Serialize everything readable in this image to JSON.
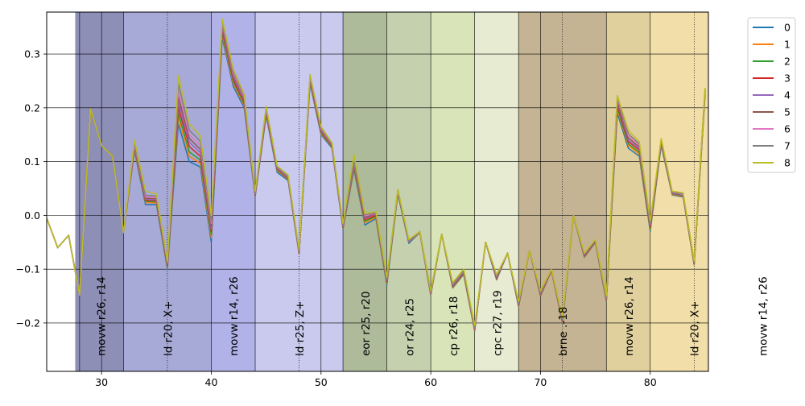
{
  "chart_data": {
    "type": "line",
    "title": "",
    "xlabel": "",
    "ylabel": "",
    "xlim": [
      25,
      85.3
    ],
    "ylim": [
      -0.29,
      0.378
    ],
    "grid": true,
    "legend_position": "outside-top-right",
    "x_ticks": [
      {
        "value": 30,
        "label": "30"
      },
      {
        "value": 40,
        "label": "40"
      },
      {
        "value": 50,
        "label": "50"
      },
      {
        "value": 60,
        "label": "60"
      },
      {
        "value": 70,
        "label": "70"
      },
      {
        "value": 80,
        "label": "80"
      }
    ],
    "y_ticks": [
      {
        "value": 0.3,
        "label": "0.3"
      },
      {
        "value": 0.2,
        "label": "0.2"
      },
      {
        "value": 0.1,
        "label": "0.1"
      },
      {
        "value": 0.0,
        "label": "0.0"
      },
      {
        "value": -0.1,
        "label": "−0.1"
      },
      {
        "value": -0.2,
        "label": "−0.2"
      }
    ],
    "x": [
      25,
      26,
      27,
      28,
      29,
      30,
      31,
      32,
      33,
      34,
      35,
      36,
      37,
      38,
      39,
      40,
      41,
      42,
      43,
      44,
      45,
      46,
      47,
      48,
      49,
      50,
      51,
      52,
      53,
      54,
      55,
      56,
      57,
      58,
      59,
      60,
      61,
      62,
      63,
      64,
      65,
      66,
      67,
      68,
      69,
      70,
      71,
      72,
      73,
      74,
      75,
      76,
      77,
      78,
      79,
      80,
      81,
      82,
      83,
      84,
      85
    ],
    "series": [
      {
        "name": "0",
        "color": "#1f77b4",
        "values": [
          -0.005,
          -0.06,
          -0.037,
          -0.148,
          0.198,
          0.13,
          0.11,
          -0.032,
          0.12,
          0.02,
          0.02,
          -0.1,
          0.17,
          0.1,
          0.09,
          -0.05,
          0.33,
          0.24,
          0.2,
          0.035,
          0.185,
          0.08,
          0.065,
          -0.072,
          0.245,
          0.15,
          0.125,
          -0.025,
          0.085,
          -0.018,
          -0.006,
          -0.13,
          0.04,
          -0.052,
          -0.032,
          -0.148,
          -0.035,
          -0.135,
          -0.11,
          -0.215,
          -0.05,
          -0.12,
          -0.07,
          -0.17,
          -0.065,
          -0.15,
          -0.103,
          -0.2,
          0.0,
          -0.078,
          -0.05,
          -0.16,
          0.19,
          0.125,
          0.11,
          -0.03,
          0.13,
          0.038,
          0.034,
          -0.092,
          0.225
        ]
      },
      {
        "name": "1",
        "color": "#ff7f0e",
        "values": [
          -0.005,
          -0.06,
          -0.037,
          -0.148,
          0.198,
          0.13,
          0.11,
          -0.032,
          0.122,
          0.024,
          0.023,
          -0.097,
          0.182,
          0.11,
          0.097,
          -0.042,
          0.336,
          0.245,
          0.204,
          0.036,
          0.188,
          0.083,
          0.067,
          -0.071,
          0.248,
          0.152,
          0.127,
          -0.024,
          0.088,
          -0.014,
          -0.004,
          -0.127,
          0.042,
          -0.05,
          -0.032,
          -0.147,
          -0.035,
          -0.134,
          -0.109,
          -0.214,
          -0.05,
          -0.119,
          -0.07,
          -0.169,
          -0.065,
          -0.149,
          -0.103,
          -0.199,
          0.0,
          -0.077,
          -0.049,
          -0.159,
          0.196,
          0.13,
          0.114,
          -0.027,
          0.133,
          0.039,
          0.035,
          -0.091,
          0.228
        ]
      },
      {
        "name": "2",
        "color": "#2ca02c",
        "values": [
          -0.005,
          -0.06,
          -0.037,
          -0.148,
          0.198,
          0.13,
          0.11,
          -0.032,
          0.124,
          0.026,
          0.025,
          -0.095,
          0.19,
          0.118,
          0.103,
          -0.036,
          0.34,
          0.249,
          0.207,
          0.037,
          0.19,
          0.085,
          0.068,
          -0.07,
          0.25,
          0.154,
          0.128,
          -0.023,
          0.09,
          -0.011,
          -0.002,
          -0.125,
          0.043,
          -0.05,
          -0.031,
          -0.146,
          -0.035,
          -0.133,
          -0.108,
          -0.213,
          -0.05,
          -0.118,
          -0.07,
          -0.168,
          -0.065,
          -0.148,
          -0.102,
          -0.198,
          0.0,
          -0.076,
          -0.048,
          -0.158,
          0.2,
          0.133,
          0.117,
          -0.025,
          0.135,
          0.04,
          0.036,
          -0.09,
          0.23
        ]
      },
      {
        "name": "3",
        "color": "#d62728",
        "values": [
          -0.005,
          -0.06,
          -0.037,
          -0.148,
          0.198,
          0.13,
          0.11,
          -0.032,
          0.126,
          0.028,
          0.027,
          -0.093,
          0.2,
          0.128,
          0.11,
          -0.03,
          0.345,
          0.253,
          0.21,
          0.038,
          0.192,
          0.086,
          0.069,
          -0.069,
          0.252,
          0.156,
          0.129,
          -0.022,
          0.092,
          -0.008,
          0.0,
          -0.123,
          0.044,
          -0.049,
          -0.031,
          -0.145,
          -0.035,
          -0.132,
          -0.107,
          -0.212,
          -0.05,
          -0.117,
          -0.07,
          -0.167,
          -0.065,
          -0.147,
          -0.102,
          -0.197,
          0.0,
          -0.075,
          -0.048,
          -0.157,
          0.205,
          0.137,
          0.121,
          -0.022,
          0.137,
          0.041,
          0.037,
          -0.089,
          0.232
        ]
      },
      {
        "name": "4",
        "color": "#9467bd",
        "values": [
          -0.005,
          -0.06,
          -0.037,
          -0.148,
          0.198,
          0.13,
          0.11,
          -0.032,
          0.128,
          0.03,
          0.029,
          -0.091,
          0.21,
          0.136,
          0.117,
          -0.025,
          0.349,
          0.257,
          0.213,
          0.039,
          0.194,
          0.087,
          0.07,
          -0.068,
          0.254,
          0.158,
          0.13,
          -0.021,
          0.094,
          -0.005,
          0.002,
          -0.121,
          0.045,
          -0.049,
          -0.031,
          -0.144,
          -0.035,
          -0.131,
          -0.106,
          -0.211,
          -0.05,
          -0.116,
          -0.07,
          -0.166,
          -0.065,
          -0.146,
          -0.101,
          -0.196,
          0.0,
          -0.074,
          -0.047,
          -0.156,
          0.21,
          0.14,
          0.124,
          -0.02,
          0.138,
          0.041,
          0.037,
          -0.088,
          0.233
        ]
      },
      {
        "name": "5",
        "color": "#8c564b",
        "values": [
          -0.005,
          -0.06,
          -0.037,
          -0.148,
          0.198,
          0.13,
          0.11,
          -0.032,
          0.13,
          0.032,
          0.031,
          -0.09,
          0.22,
          0.143,
          0.123,
          -0.02,
          0.353,
          0.261,
          0.216,
          0.04,
          0.196,
          0.088,
          0.071,
          -0.067,
          0.256,
          0.16,
          0.131,
          -0.02,
          0.096,
          -0.003,
          0.003,
          -0.12,
          0.046,
          -0.048,
          -0.03,
          -0.143,
          -0.035,
          -0.13,
          -0.105,
          -0.21,
          -0.05,
          -0.115,
          -0.07,
          -0.165,
          -0.065,
          -0.145,
          -0.101,
          -0.195,
          0.0,
          -0.073,
          -0.047,
          -0.155,
          0.214,
          0.144,
          0.127,
          -0.018,
          0.139,
          0.042,
          0.038,
          -0.087,
          0.234
        ]
      },
      {
        "name": "6",
        "color": "#e377c2",
        "values": [
          -0.005,
          -0.06,
          -0.037,
          -0.148,
          0.198,
          0.13,
          0.11,
          -0.032,
          0.132,
          0.034,
          0.033,
          -0.089,
          0.232,
          0.15,
          0.13,
          -0.015,
          0.357,
          0.264,
          0.219,
          0.041,
          0.198,
          0.089,
          0.072,
          -0.066,
          0.258,
          0.161,
          0.132,
          -0.019,
          0.098,
          -0.001,
          0.004,
          -0.119,
          0.047,
          -0.048,
          -0.03,
          -0.142,
          -0.035,
          -0.129,
          -0.104,
          -0.209,
          -0.05,
          -0.114,
          -0.07,
          -0.164,
          -0.065,
          -0.144,
          -0.1,
          -0.194,
          0.0,
          -0.072,
          -0.046,
          -0.154,
          0.218,
          0.148,
          0.13,
          -0.016,
          0.14,
          0.043,
          0.039,
          -0.086,
          0.235
        ]
      },
      {
        "name": "7",
        "color": "#7f7f7f",
        "values": [
          -0.005,
          -0.06,
          -0.037,
          -0.148,
          0.198,
          0.13,
          0.11,
          -0.032,
          0.135,
          0.037,
          0.036,
          -0.088,
          0.245,
          0.158,
          0.138,
          -0.01,
          0.361,
          0.268,
          0.222,
          0.042,
          0.2,
          0.09,
          0.073,
          -0.065,
          0.26,
          0.163,
          0.133,
          -0.018,
          0.1,
          0.001,
          0.005,
          -0.118,
          0.048,
          -0.047,
          -0.03,
          -0.141,
          -0.035,
          -0.128,
          -0.103,
          -0.208,
          -0.05,
          -0.113,
          -0.07,
          -0.163,
          -0.065,
          -0.143,
          -0.1,
          -0.193,
          0.0,
          -0.071,
          -0.046,
          -0.153,
          0.221,
          0.152,
          0.133,
          -0.014,
          0.141,
          0.044,
          0.04,
          -0.085,
          0.236
        ]
      },
      {
        "name": "8",
        "color": "#bcbd22",
        "values": [
          -0.005,
          -0.06,
          -0.037,
          -0.148,
          0.198,
          0.13,
          0.11,
          -0.032,
          0.14,
          0.045,
          0.04,
          -0.085,
          0.26,
          0.17,
          0.148,
          0.0,
          0.365,
          0.272,
          0.225,
          0.045,
          0.203,
          0.092,
          0.075,
          -0.063,
          0.262,
          0.165,
          0.135,
          -0.015,
          0.113,
          0.003,
          0.007,
          -0.115,
          0.048,
          -0.045,
          -0.03,
          -0.14,
          -0.035,
          -0.125,
          -0.1,
          -0.205,
          -0.05,
          -0.11,
          -0.07,
          -0.16,
          -0.065,
          -0.14,
          -0.1,
          -0.19,
          0.0,
          -0.07,
          -0.045,
          -0.15,
          0.223,
          0.158,
          0.137,
          -0.01,
          0.143,
          0.045,
          0.042,
          -0.085,
          0.237
        ]
      }
    ],
    "regions": [
      {
        "start": 27.6,
        "end": 32,
        "color": "#8d8fb7",
        "label": "movw r26, r14",
        "label_x": 30.3
      },
      {
        "start": 32,
        "end": 40,
        "color": "#a7a9d6",
        "label": "ld r20, X+",
        "label_x": 36.4
      },
      {
        "start": 40,
        "end": 44,
        "color": "#b1b2e8",
        "label": "movw r14, r26",
        "label_x": 42.4
      },
      {
        "start": 44,
        "end": 52,
        "color": "#c9caee",
        "label": "ld r25, Z+",
        "label_x": 48.4
      },
      {
        "start": 52,
        "end": 56,
        "color": "#adbb9b",
        "label": "eor r25, r20",
        "label_x": 54.4
      },
      {
        "start": 56,
        "end": 60,
        "color": "#c5d1ae",
        "label": "or r24, r25",
        "label_x": 58.4
      },
      {
        "start": 60,
        "end": 64,
        "color": "#dae4b9",
        "label": "cp r26, r18",
        "label_x": 62.4
      },
      {
        "start": 64,
        "end": 68,
        "color": "#e7ebd1",
        "label": "cpc r27, r19",
        "label_x": 66.4
      },
      {
        "start": 68,
        "end": 76,
        "color": "#c4b493",
        "label": "brne .-18",
        "label_x": 72.4
      },
      {
        "start": 76,
        "end": 80,
        "color": "#dfd09e",
        "label": "movw r26, r14",
        "label_x": 78.4
      },
      {
        "start": 80,
        "end": 85.3,
        "color": "#f1dea8",
        "label": "ld r20, X+",
        "label_x": 84.4
      },
      {
        "start": 85.3,
        "end": 85.3,
        "color": "#ffffff",
        "label": "movw r14, r26",
        "label_x": 90.6
      }
    ],
    "solid_vlines": [
      28,
      30,
      32,
      40,
      44,
      50,
      52,
      56,
      60,
      64,
      68,
      70,
      76,
      80
    ],
    "dotted_vlines": [
      36,
      48,
      72,
      84
    ]
  }
}
